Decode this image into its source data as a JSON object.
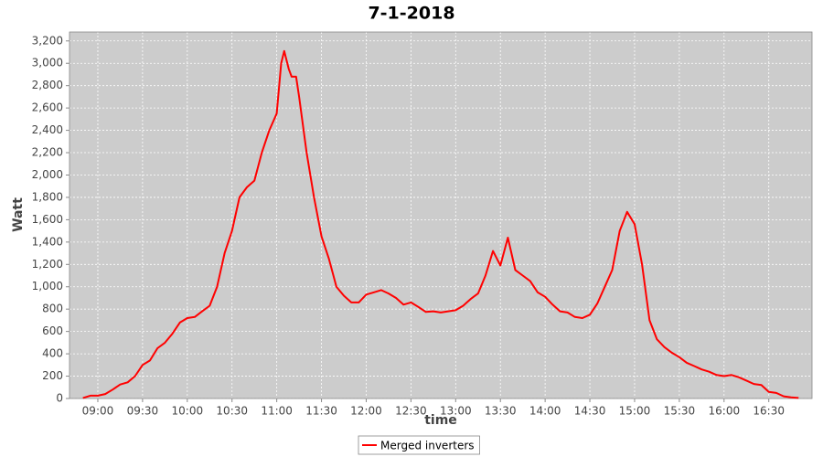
{
  "chart_data": {
    "type": "line",
    "title": "7-1-2018",
    "xlabel": "time",
    "ylabel": "Watt",
    "x": [
      "08:50",
      "08:55",
      "09:00",
      "09:05",
      "09:10",
      "09:15",
      "09:20",
      "09:25",
      "09:30",
      "09:35",
      "09:40",
      "09:45",
      "09:50",
      "09:55",
      "10:00",
      "10:05",
      "10:10",
      "10:15",
      "10:20",
      "10:25",
      "10:30",
      "10:35",
      "10:40",
      "10:45",
      "10:50",
      "10:55",
      "11:00",
      "11:03",
      "11:05",
      "11:08",
      "11:10",
      "11:13",
      "11:15",
      "11:20",
      "11:25",
      "11:30",
      "11:35",
      "11:40",
      "11:45",
      "11:50",
      "11:55",
      "12:00",
      "12:05",
      "12:10",
      "12:15",
      "12:20",
      "12:25",
      "12:30",
      "12:35",
      "12:40",
      "12:45",
      "12:50",
      "12:55",
      "13:00",
      "13:05",
      "13:10",
      "13:15",
      "13:20",
      "13:25",
      "13:30",
      "13:35",
      "13:40",
      "13:45",
      "13:50",
      "13:55",
      "14:00",
      "14:05",
      "14:10",
      "14:15",
      "14:20",
      "14:25",
      "14:30",
      "14:35",
      "14:40",
      "14:45",
      "14:50",
      "14:55",
      "15:00",
      "15:05",
      "15:10",
      "15:15",
      "15:20",
      "15:25",
      "15:30",
      "15:35",
      "15:40",
      "15:45",
      "15:50",
      "15:55",
      "16:00",
      "16:05",
      "16:10",
      "16:15",
      "16:20",
      "16:25",
      "16:30",
      "16:35",
      "16:40",
      "16:45",
      "16:50"
    ],
    "series": [
      {
        "name": "Merged inverters",
        "color": "#ff0000",
        "values": [
          5,
          25,
          25,
          40,
          80,
          125,
          145,
          200,
          300,
          340,
          450,
          500,
          580,
          680,
          720,
          730,
          780,
          830,
          1000,
          1300,
          1500,
          1800,
          1890,
          1950,
          2200,
          2400,
          2550,
          3000,
          3110,
          2950,
          2880,
          2880,
          2700,
          2200,
          1800,
          1450,
          1250,
          1000,
          920,
          860,
          860,
          930,
          950,
          970,
          940,
          900,
          840,
          860,
          820,
          775,
          780,
          770,
          780,
          790,
          830,
          890,
          940,
          1100,
          1320,
          1190,
          1440,
          1150,
          1100,
          1050,
          950,
          910,
          840,
          780,
          770,
          730,
          720,
          750,
          850,
          1000,
          1150,
          1500,
          1670,
          1560,
          1200,
          700,
          530,
          460,
          410,
          370,
          320,
          290,
          260,
          240,
          210,
          200,
          210,
          190,
          160,
          130,
          120,
          60,
          50,
          20,
          10,
          5
        ]
      }
    ],
    "xlim": [
      "08:41",
      "16:59"
    ],
    "xticks": [
      "09:00",
      "09:30",
      "10:00",
      "10:30",
      "11:00",
      "11:30",
      "12:00",
      "12:30",
      "13:00",
      "13:30",
      "14:00",
      "14:30",
      "15:00",
      "15:30",
      "16:00",
      "16:30"
    ],
    "ylim": [
      0,
      3280
    ],
    "yticks": [
      0,
      200,
      400,
      600,
      800,
      {
        "value": 1000,
        "label": "1,000"
      },
      {
        "value": 1200,
        "label": "1,200"
      },
      {
        "value": 1400,
        "label": "1,400"
      },
      {
        "value": 1600,
        "label": "1,600"
      },
      {
        "value": 1800,
        "label": "1,800"
      },
      {
        "value": 2000,
        "label": "2,000"
      },
      {
        "value": 2200,
        "label": "2,200"
      },
      {
        "value": 2400,
        "label": "2,400"
      },
      {
        "value": 2600,
        "label": "2,600"
      },
      {
        "value": 2800,
        "label": "2,800"
      },
      {
        "value": 3000,
        "label": "3,000"
      },
      {
        "value": 3200,
        "label": "3,200"
      }
    ],
    "grid": true,
    "legend": "bottom"
  }
}
